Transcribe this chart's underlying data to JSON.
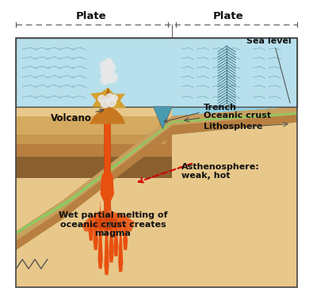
{
  "labels": {
    "plate_left": "Plate",
    "plate_right": "Plate",
    "sea_level": "Sea level",
    "volcano": "Volcano",
    "trench": "Trench",
    "oceanic_crust": "Oceanic crust",
    "lithosphere": "Lithosphere",
    "asthenosphere": "Asthenosphere:\nweak, hot",
    "magma_text": "Wet partial melting of\noceanic crust creates\nmagma"
  },
  "colors": {
    "water_light": "#b8e0ec",
    "water_mid": "#8ecfe0",
    "water_dark": "#5aabbd",
    "ground_tan": "#d4a96a",
    "ground_brown": "#c49050",
    "ground_dark": "#8b6342",
    "asth_tan": "#e8c88a",
    "slab_brown": "#b89060",
    "slab_light": "#c8a870",
    "litho_green": "#90c860",
    "magma_dark": "#c83800",
    "magma_orange": "#e85010",
    "magma_light": "#f07830",
    "vol_brown": "#c07020",
    "vol_gold": "#d4a020",
    "vol_yellow": "#e8c040",
    "smoke_white": "#e8e8e8",
    "border": "#444444",
    "text": "#111111",
    "red_arrow": "#cc0000",
    "wave": "#5090a0",
    "ridge": "#3a7080"
  },
  "figsize": [
    3.95,
    3.88
  ],
  "dpi": 100
}
